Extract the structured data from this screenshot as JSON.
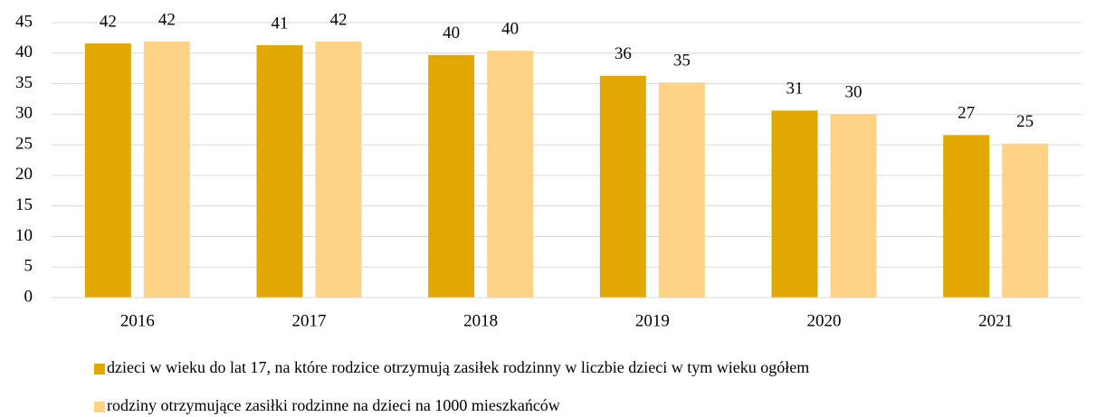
{
  "chart_data": {
    "type": "bar",
    "categories": [
      "2016",
      "2017",
      "2018",
      "2019",
      "2020",
      "2021"
    ],
    "series": [
      {
        "name": "dzieci w wieku do lat 17, na które rodzice otrzymują zasiłek rodzinny w liczbie dzieci w tym wieku ogółem",
        "color": "#E0A800",
        "values": [
          41.6,
          41.3,
          39.7,
          36.3,
          30.6,
          26.6
        ],
        "value_labels": [
          "42",
          "41",
          "40",
          "36",
          "31",
          "27"
        ]
      },
      {
        "name": "rodziny otrzymujące zasiłki rodzinne na dzieci na 1000 mieszkańców",
        "color": "#FFD386",
        "values": [
          41.9,
          41.9,
          40.4,
          35.2,
          30.0,
          25.2
        ],
        "value_labels": [
          "42",
          "42",
          "40",
          "35",
          "30",
          "25"
        ]
      }
    ],
    "ylim": [
      0,
      45
    ],
    "yticks": [
      0,
      5,
      10,
      15,
      20,
      25,
      30,
      35,
      40,
      45
    ],
    "grid": true
  }
}
